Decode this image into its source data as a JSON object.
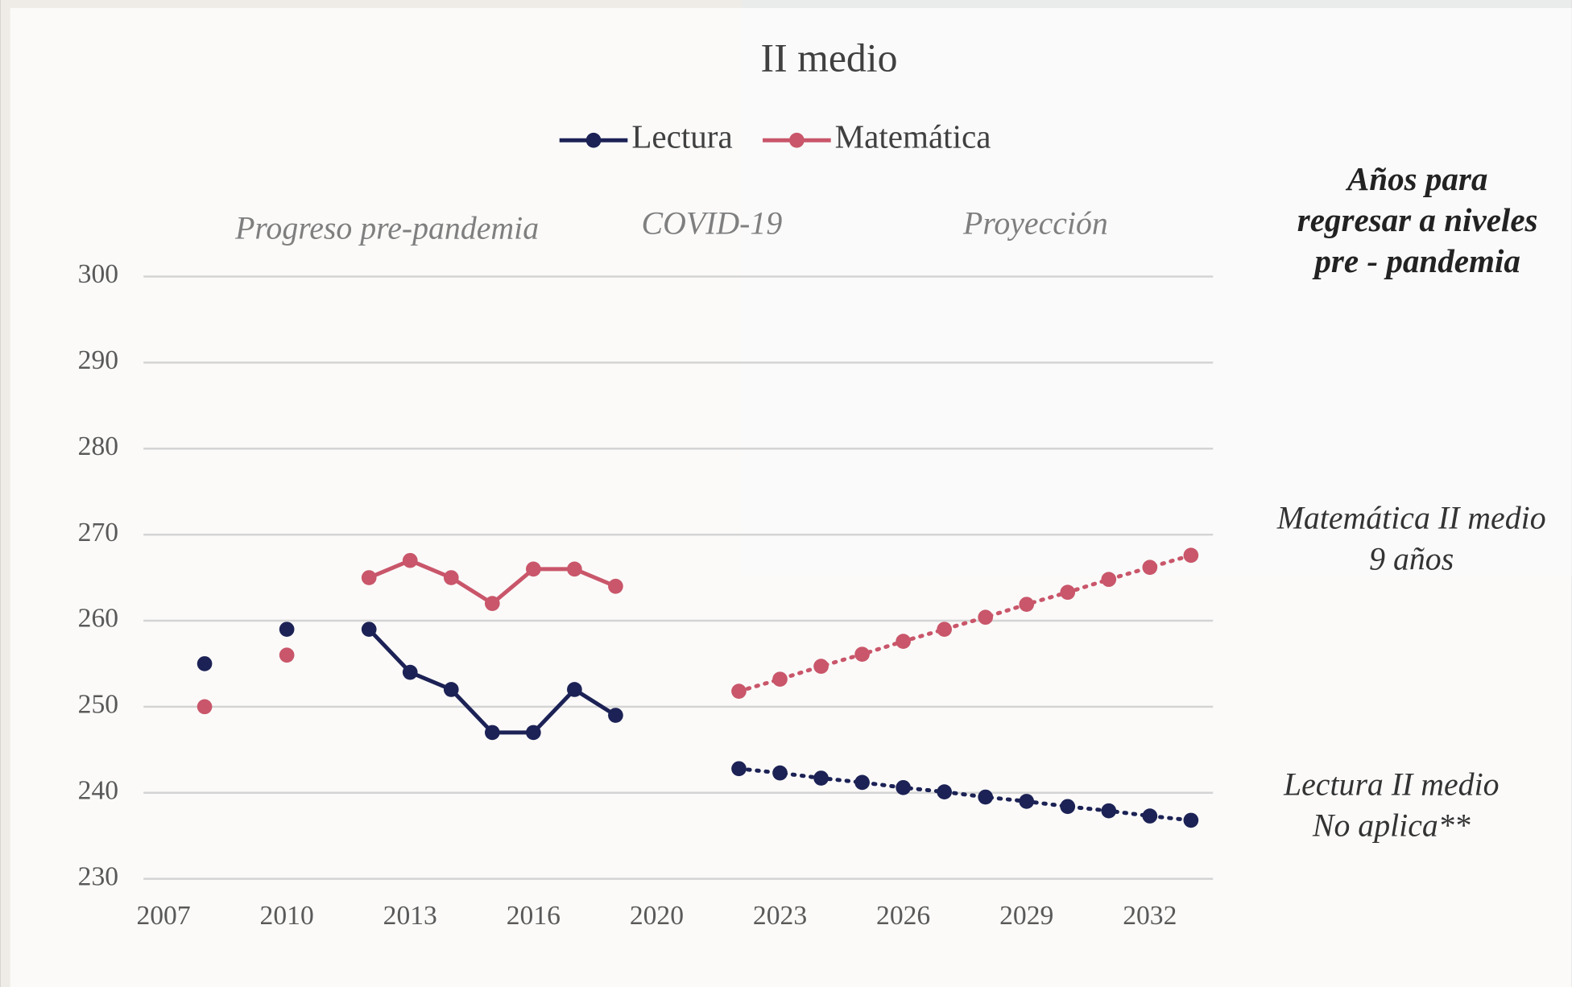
{
  "chart_data": {
    "type": "line",
    "title": "II medio",
    "categories": [
      "2007",
      null,
      null,
      "2010",
      null,
      null,
      "2013",
      null,
      null,
      "2016",
      null,
      null,
      "2020",
      null,
      null,
      "2023",
      null,
      null,
      "2026",
      null,
      null,
      "2029",
      null,
      null,
      "2032",
      null
    ],
    "ylim": [
      230,
      300
    ],
    "yticks": [
      230,
      240,
      250,
      260,
      270,
      280,
      290,
      300
    ],
    "grid": true,
    "legend": "top",
    "series": [
      {
        "name": "Lectura",
        "color": "#1c2255",
        "values": [
          null,
          255,
          null,
          259,
          null,
          259,
          254,
          252,
          247,
          247,
          252,
          249,
          null,
          null,
          null,
          null,
          null,
          null,
          null,
          null,
          null,
          null,
          null,
          null,
          null,
          null
        ],
        "projected_values": [
          null,
          null,
          null,
          null,
          null,
          null,
          null,
          null,
          null,
          null,
          null,
          null,
          null,
          null,
          242.8,
          242.3,
          241.7,
          241.2,
          240.6,
          240.1,
          239.5,
          239.0,
          238.4,
          237.9,
          237.3,
          236.8
        ]
      },
      {
        "name": "Matemática",
        "color": "#c9566a",
        "values": [
          null,
          250,
          null,
          256,
          null,
          265,
          267,
          265,
          262,
          266,
          266,
          264,
          null,
          null,
          null,
          null,
          null,
          null,
          null,
          null,
          null,
          null,
          null,
          null,
          null,
          null
        ],
        "projected_values": [
          null,
          null,
          null,
          null,
          null,
          null,
          null,
          null,
          null,
          null,
          null,
          null,
          null,
          null,
          251.8,
          253.2,
          254.7,
          256.1,
          257.6,
          259.0,
          260.4,
          261.9,
          263.3,
          264.8,
          266.2,
          267.6
        ]
      }
    ],
    "annotations": [
      "Progreso pre-pandemia",
      "COVID-19",
      "Proyección"
    ],
    "side_title": [
      "Años para",
      "regresar a niveles",
      "pre - pandemia"
    ],
    "side_notes": [
      [
        "Matemática II medio",
        "9 años"
      ],
      [
        "Lectura II medio",
        "No aplica**"
      ]
    ]
  }
}
